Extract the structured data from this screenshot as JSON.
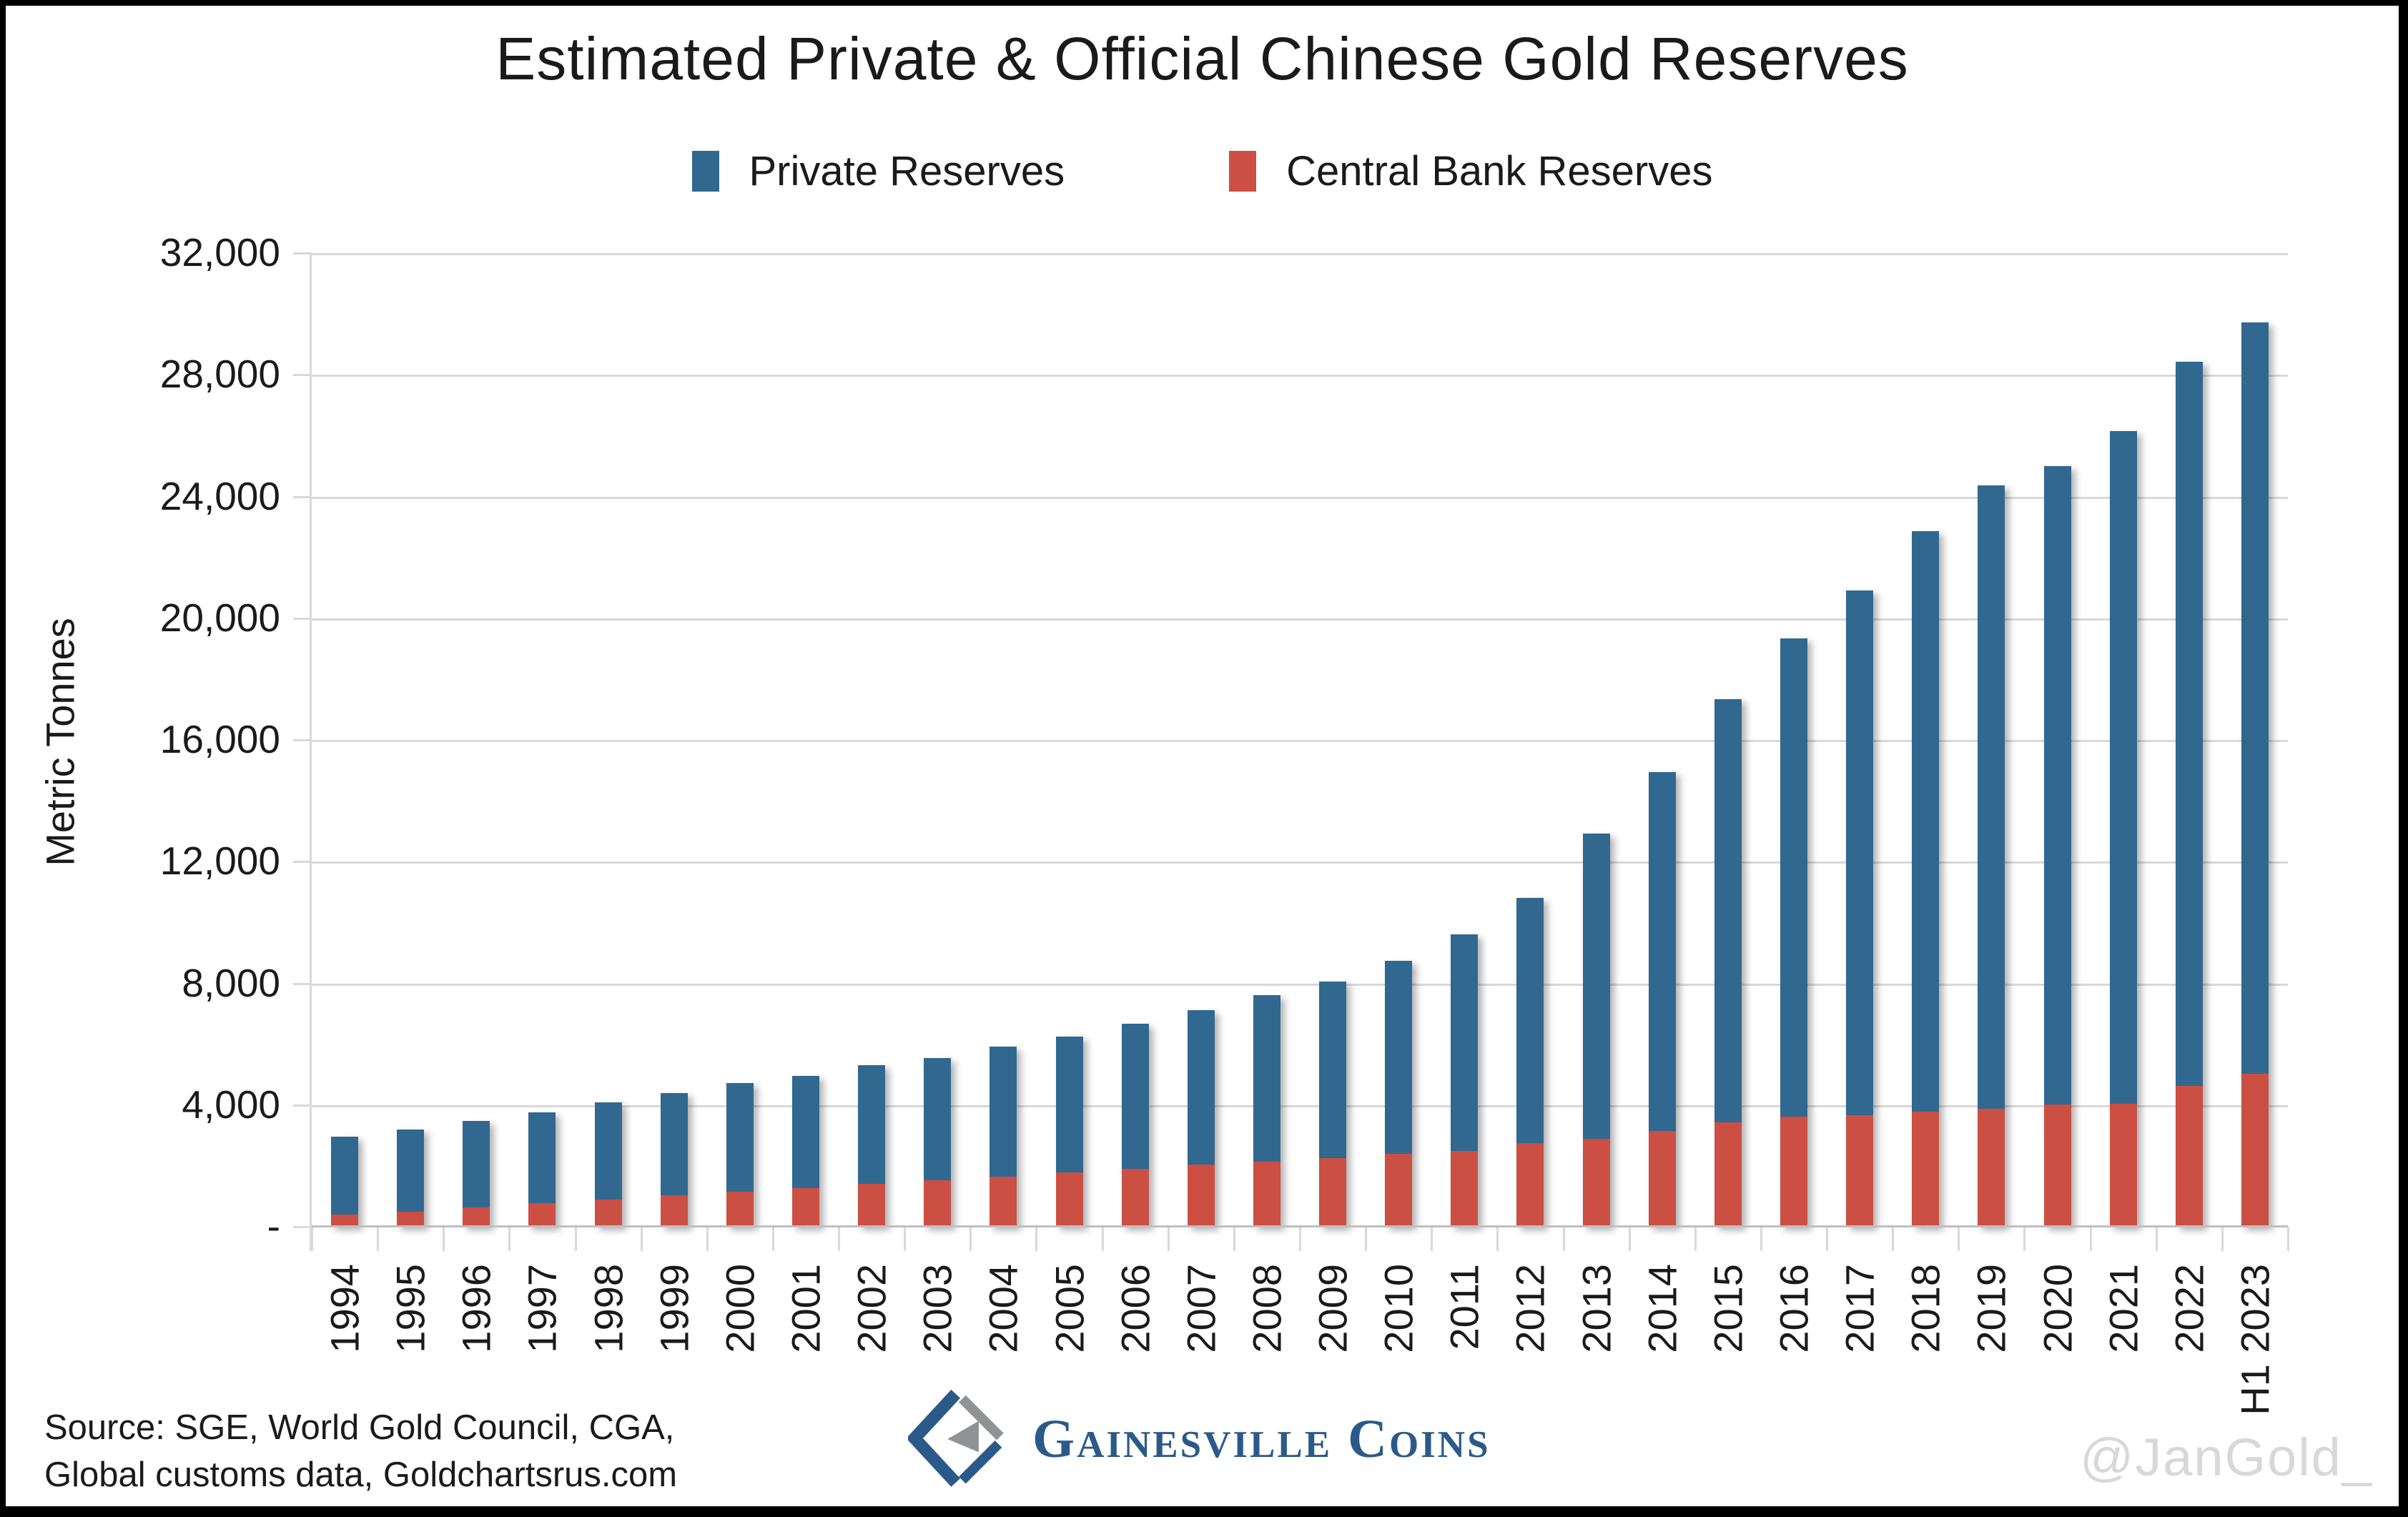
{
  "header": {
    "title": "Estimated Private & Official Chinese Gold Reserves"
  },
  "legend": {
    "items": [
      {
        "label": "Private Reserves",
        "color": "#31688F"
      },
      {
        "label": "Central Bank Reserves",
        "color": "#CC4F43"
      }
    ]
  },
  "y_axis": {
    "title": "Metric Tonnes",
    "tick_labels": [
      "32,000",
      "28,000",
      "24,000",
      "20,000",
      "16,000",
      "12,000",
      "8,000",
      "4,000",
      "-"
    ]
  },
  "footer": {
    "source_line_1": "Source: SGE, World Gold Council, CGA,",
    "source_line_2": "Global customs data, Goldchartsrus.com",
    "brand": "Gainesville Coins",
    "watermark": "@JanGold_"
  },
  "style": {
    "private_color": "#31688F",
    "central_bank_color": "#CC4F43",
    "grid_color": "#d9d9d9",
    "axis_color": "#bfbfbf",
    "brand_blue": "#2C5A88",
    "brand_gray": "#909295",
    "watermark_color": "#d8d8d8"
  },
  "chart_data": {
    "type": "bar",
    "stacked": true,
    "title": "Estimated Private & Official Chinese Gold Reserves",
    "xlabel": "",
    "ylabel": "Metric Tonnes",
    "ylim": [
      0,
      32000
    ],
    "ytick_step": 4000,
    "grid": true,
    "legend_position": "top",
    "categories": [
      "1994",
      "1995",
      "1996",
      "1997",
      "1998",
      "1999",
      "2000",
      "2001",
      "2002",
      "2003",
      "2004",
      "2005",
      "2006",
      "2007",
      "2008",
      "2009",
      "2010",
      "2011",
      "2012",
      "2013",
      "2014",
      "2015",
      "2016",
      "2017",
      "2018",
      "2019",
      "2020",
      "2021",
      "2022",
      "H1 2023"
    ],
    "series": [
      {
        "name": "Central Bank Reserves",
        "color": "#CC4F43",
        "stack_position": "bottom",
        "values": [
          394,
          500,
          630,
          780,
          900,
          1030,
          1140,
          1280,
          1410,
          1520,
          1640,
          1790,
          1900,
          2040,
          2130,
          2250,
          2400,
          2500,
          2740,
          2900,
          3160,
          3430,
          3630,
          3670,
          3790,
          3880,
          4010,
          4050,
          4640,
          5020
        ]
      },
      {
        "name": "Private Reserves",
        "color": "#31688F",
        "stack_position": "top",
        "values": [
          2560,
          2700,
          2850,
          2970,
          3180,
          3360,
          3580,
          3670,
          3910,
          4030,
          4280,
          4460,
          4770,
          5080,
          5480,
          5810,
          6350,
          7110,
          8060,
          10030,
          11790,
          13920,
          15700,
          17230,
          19080,
          20490,
          20990,
          22090,
          23780,
          24690
        ]
      }
    ]
  }
}
